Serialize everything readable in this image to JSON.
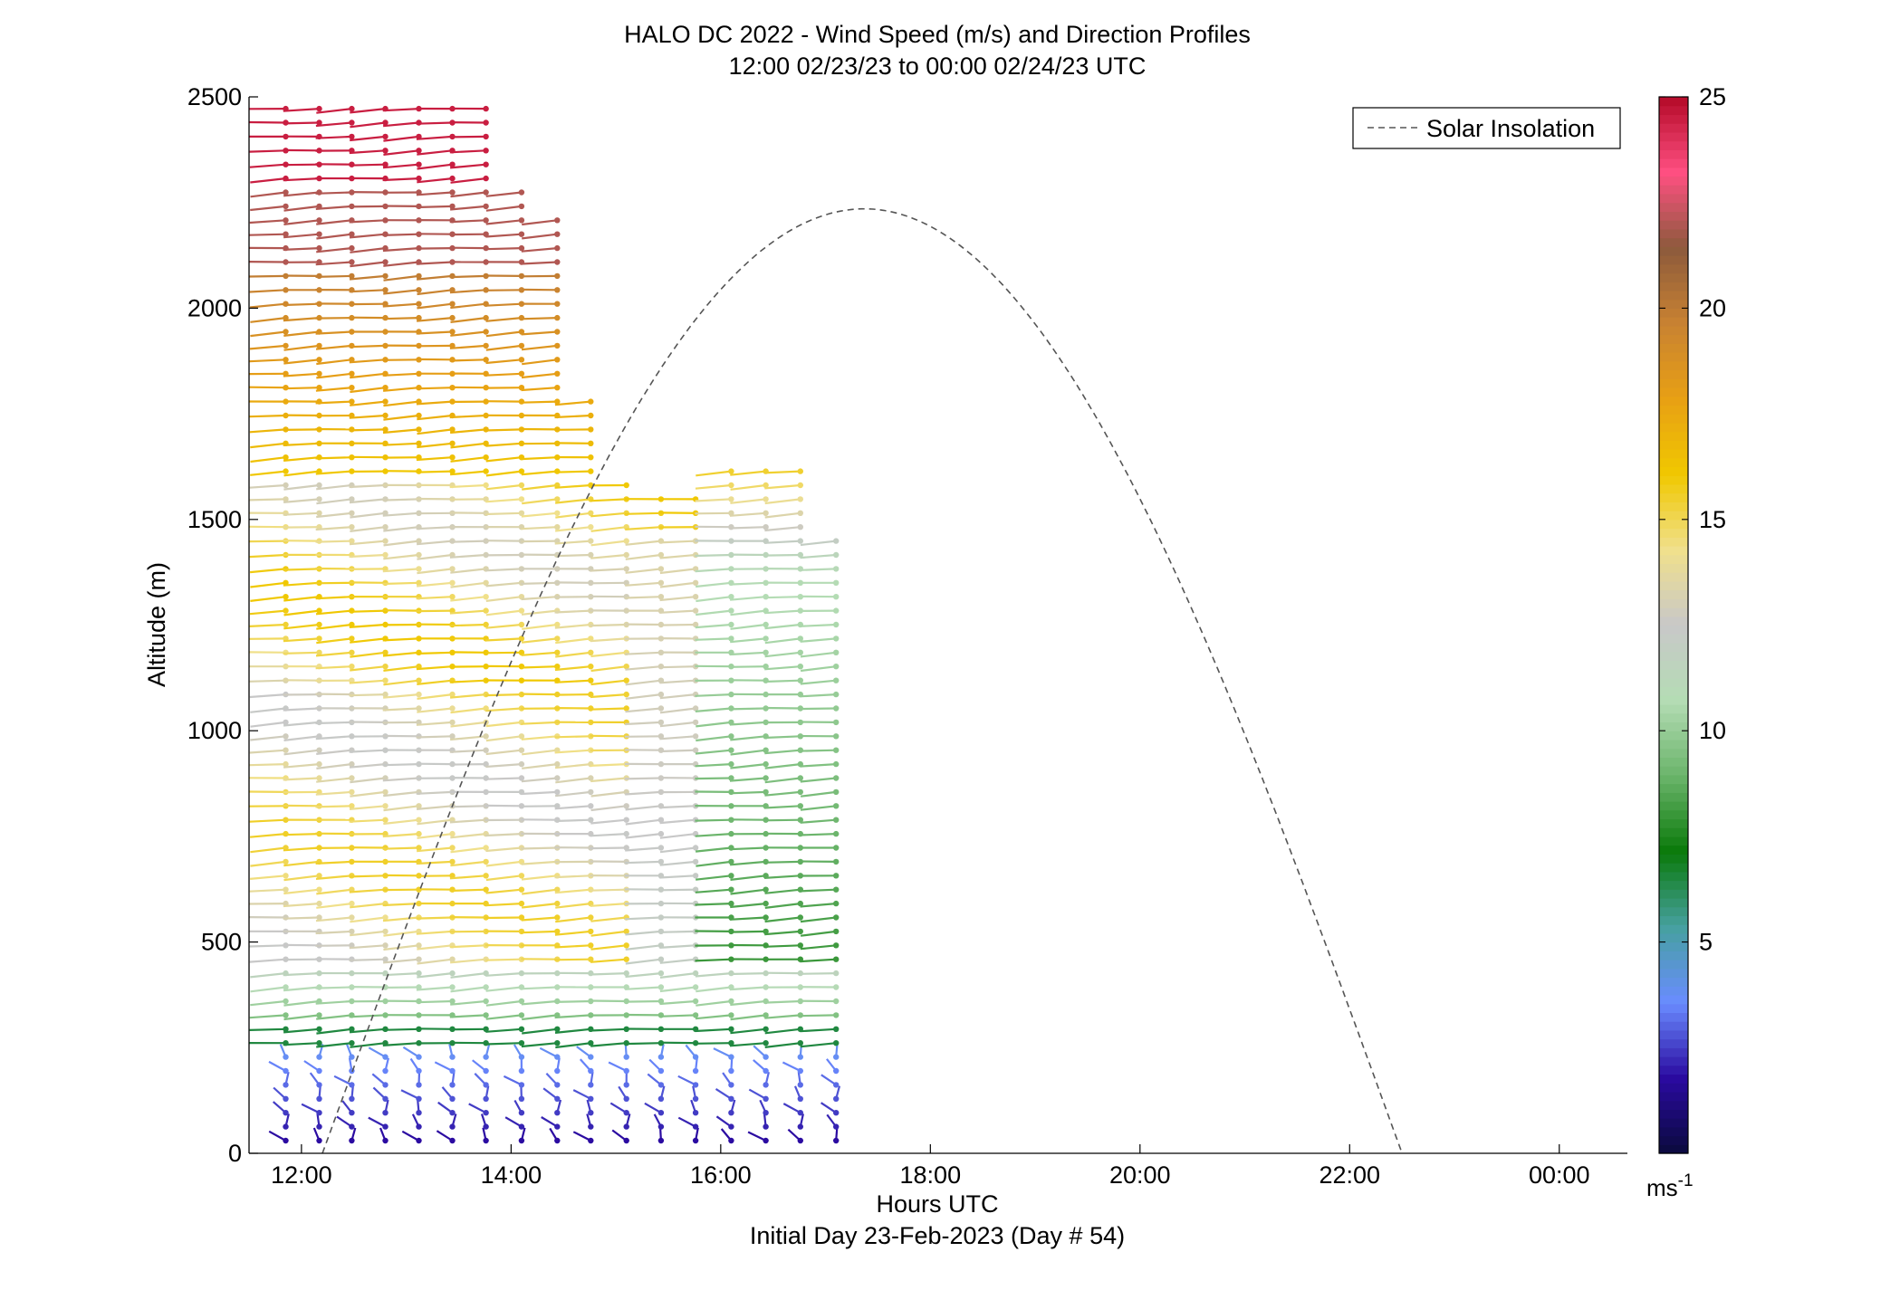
{
  "chart_data": {
    "type": "wind-barb-profile",
    "title": "HALO DC 2022 - Wind Speed (m/s) and Direction Profiles",
    "subtitle": "12:00 02/23/23 to 00:00 02/24/23  UTC",
    "xlabel": "Hours UTC",
    "xlabel2": "Initial Day 23-Feb-2023 (Day # 54)",
    "ylabel": "Altitude (m)",
    "xlim": [
      11.5,
      24.65
    ],
    "ylim": [
      0,
      2500
    ],
    "xticks": [
      12,
      14,
      16,
      18,
      20,
      22,
      24
    ],
    "xtick_labels": [
      "12:00",
      "14:00",
      "16:00",
      "18:00",
      "20:00",
      "22:00",
      "00:00"
    ],
    "yticks": [
      0,
      500,
      1000,
      1500,
      2000,
      2500
    ],
    "ytick_labels": [
      "0",
      "500",
      "1000",
      "1500",
      "2000",
      "2500"
    ],
    "colorbar": {
      "range": [
        0,
        25
      ],
      "ticks": [
        5,
        10,
        15,
        20,
        25
      ],
      "tick_labels": [
        "5",
        "10",
        "15",
        "20",
        "25"
      ],
      "unit_label": "ms",
      "unit_exp": "-1",
      "colormap": [
        "#0a0a3c",
        "#2a0aa0",
        "#6a8cff",
        "#46a0a0",
        "#0a7a0a",
        "#6ab46a",
        "#b4dcb4",
        "#c8c8c8",
        "#f0e08c",
        "#f0c800",
        "#e8a014",
        "#c88232",
        "#8c5a3c",
        "#ff5082",
        "#b40a28"
      ]
    },
    "legend": {
      "position": "top-right",
      "entries": [
        {
          "label": "Solar Insolation",
          "style": "dashed",
          "color": "#555555"
        }
      ]
    },
    "solar_insolation": {
      "start_hour": 12.2,
      "peak_hour": 17.37,
      "end_hour": 22.5,
      "peak_altitude_equiv": 2235
    },
    "grid": false,
    "profiles": {
      "times": [
        11.85,
        12.17,
        12.48,
        12.8,
        13.12,
        13.44,
        13.76,
        14.1,
        14.44,
        14.76,
        15.1,
        15.43,
        15.76,
        16.1,
        16.43,
        16.76,
        17.1
      ],
      "top_altitudes": [
        2480,
        2480,
        2480,
        2480,
        2480,
        2480,
        2480,
        2280,
        2240,
        1800,
        1600,
        1560,
        1560,
        1640,
        1640,
        1640,
        1460
      ],
      "altitude_step": 33,
      "nominal_direction_deg": 250
    }
  }
}
